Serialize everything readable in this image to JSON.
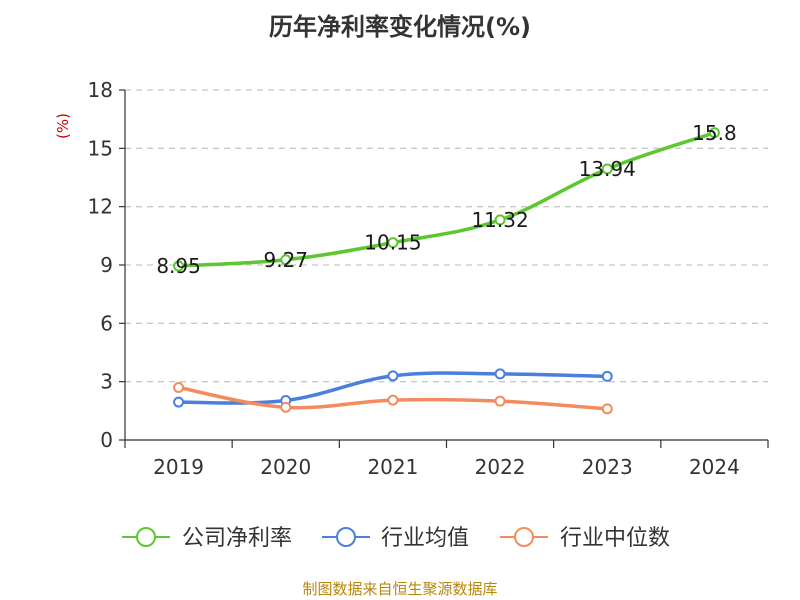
{
  "chart_data": {
    "type": "line",
    "title": "历年净利率变化情况(%)",
    "ylabel": "(%)",
    "xlabel": "",
    "categories": [
      "2019",
      "2020",
      "2021",
      "2022",
      "2023",
      "2024"
    ],
    "ylim": [
      0,
      18
    ],
    "yticks": [
      0,
      3,
      6,
      9,
      12,
      15,
      18
    ],
    "grid": true,
    "legend_position": "bottom",
    "series": [
      {
        "name": "公司净利率",
        "color": "#5cc72e",
        "values": [
          8.95,
          9.27,
          10.15,
          11.32,
          13.94,
          15.8
        ],
        "labels": [
          "8.95",
          "9.27",
          "10.15",
          "11.32",
          "13.94",
          "15.8"
        ]
      },
      {
        "name": "行业均值",
        "color": "#4a7fdc",
        "values": [
          1.95,
          2.03,
          3.3,
          3.4,
          3.27,
          null
        ]
      },
      {
        "name": "行业中位数",
        "color": "#f28c5e",
        "values": [
          2.7,
          1.68,
          2.05,
          2.0,
          1.6,
          null
        ]
      }
    ]
  },
  "footer": "制图数据来自恒生聚源数据库"
}
